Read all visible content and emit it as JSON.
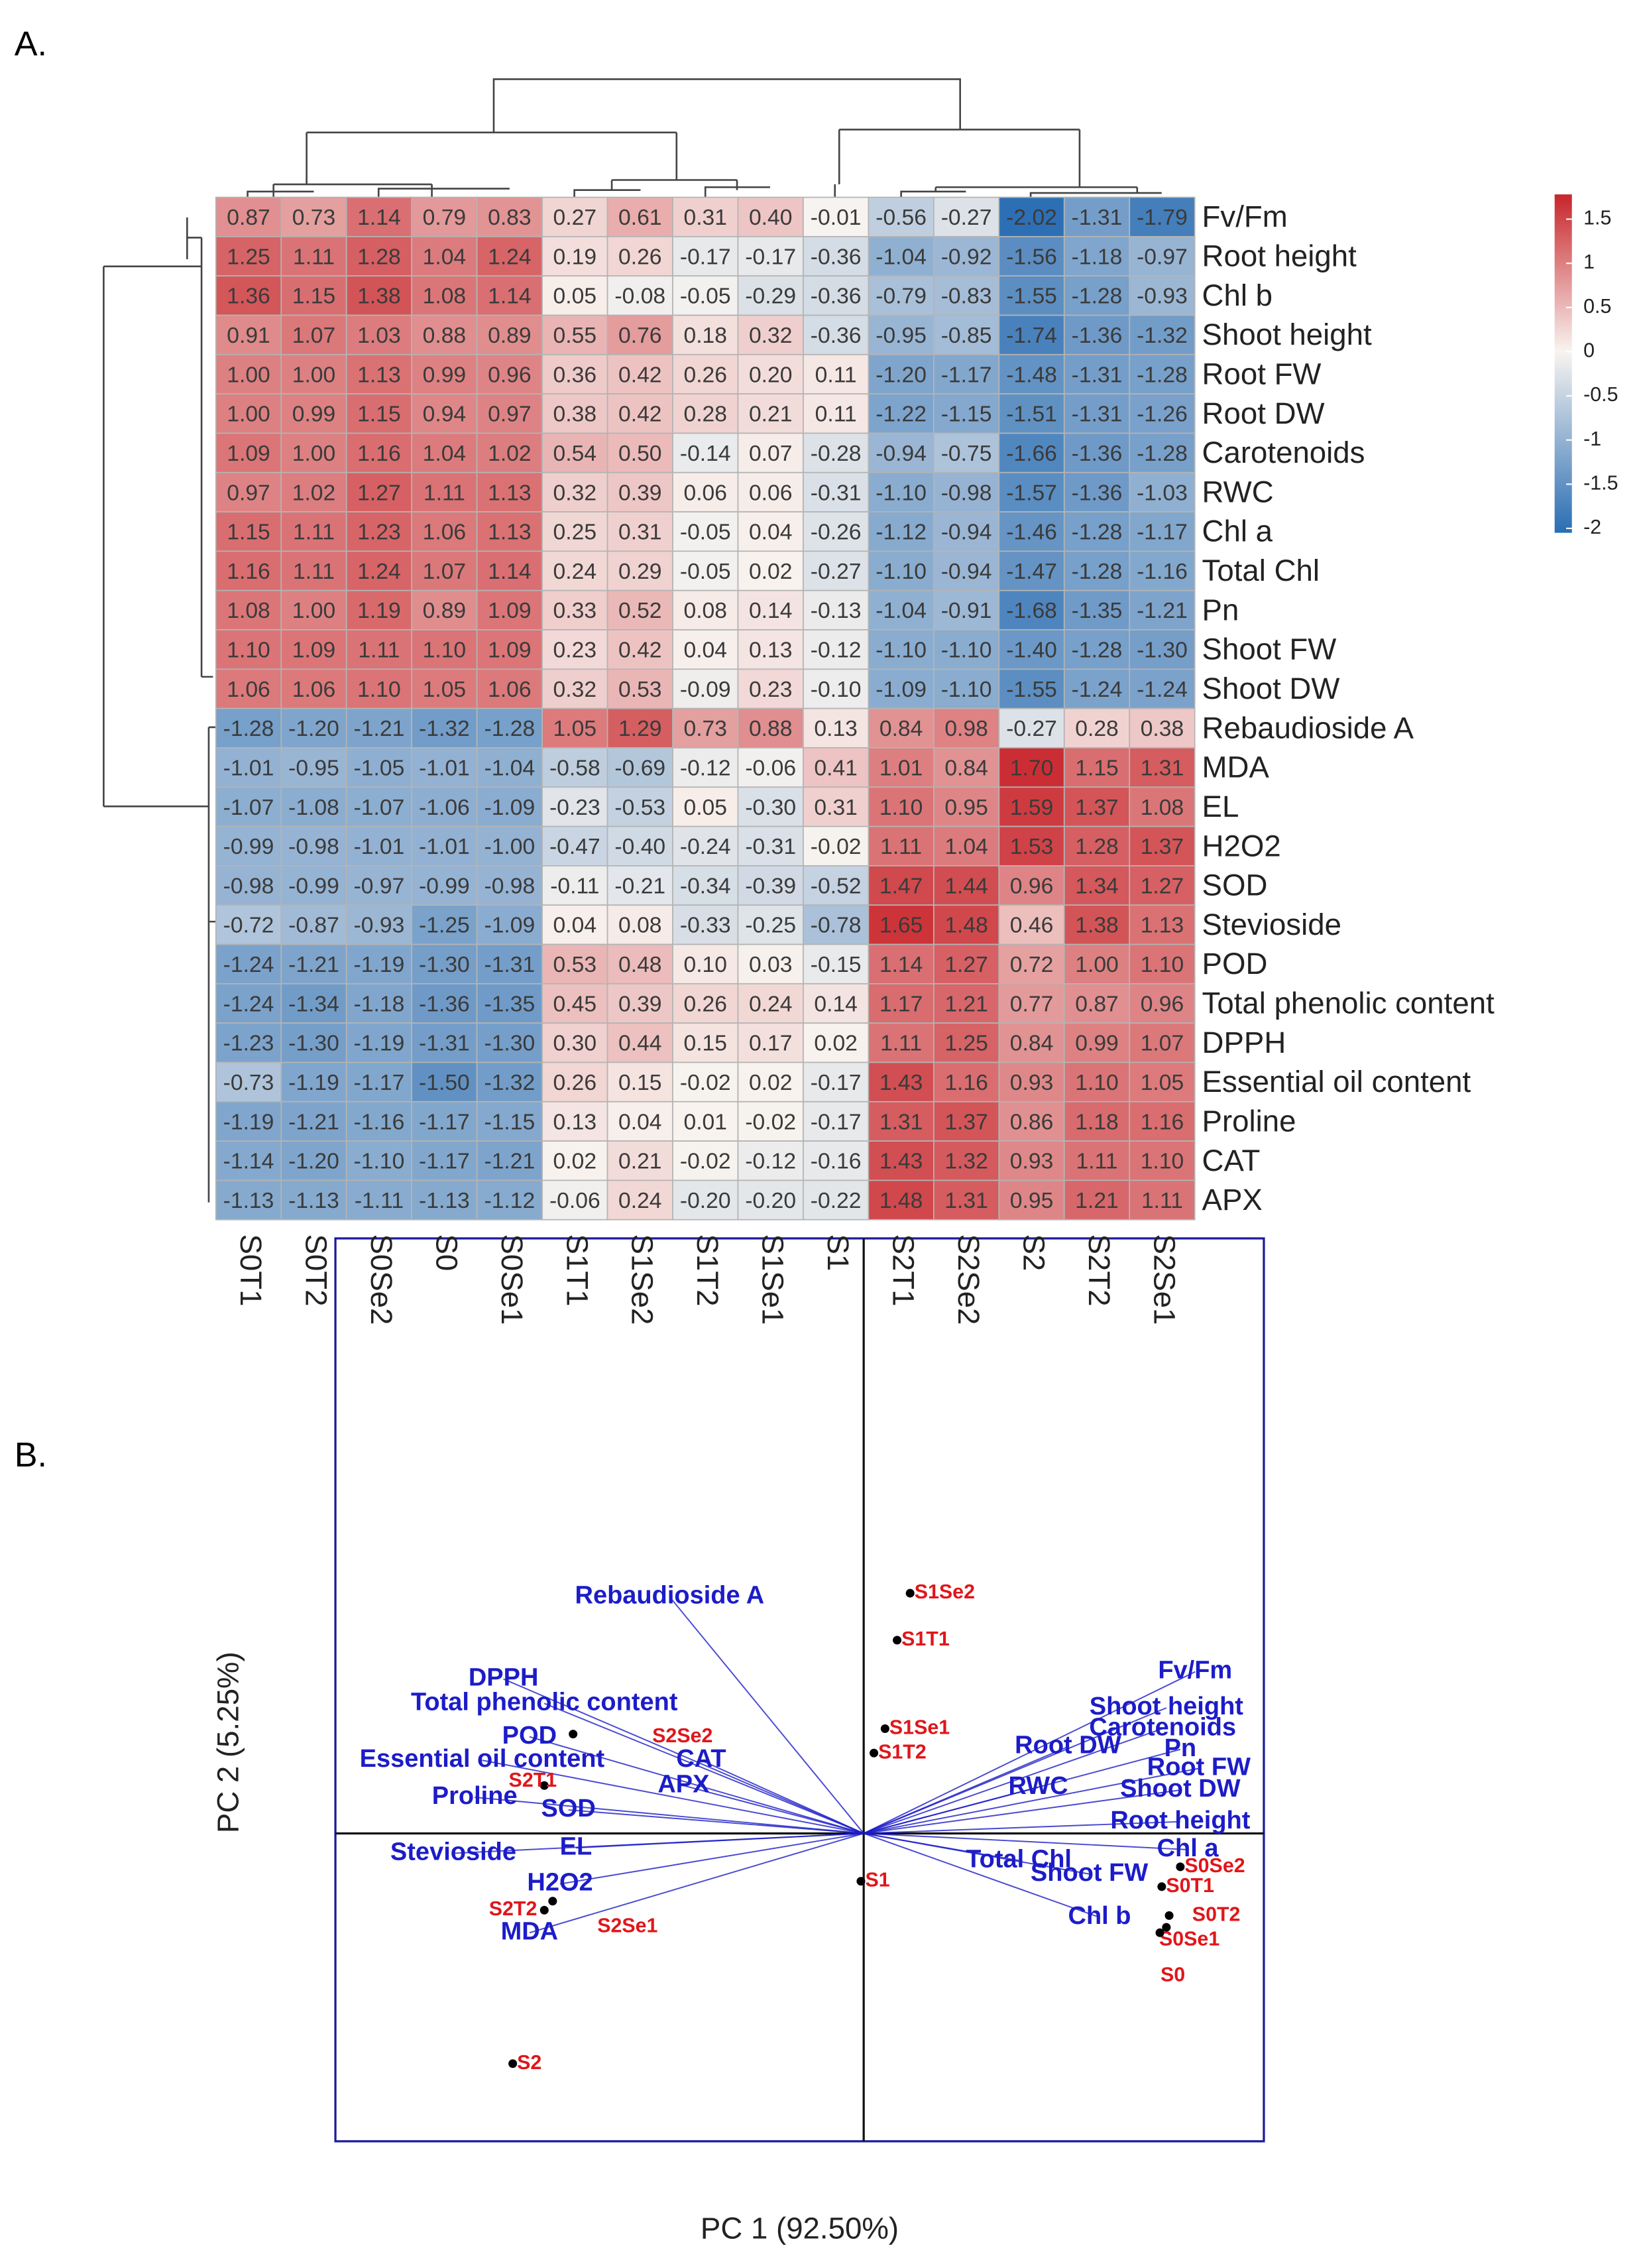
{
  "panel_labels": [
    "A.",
    "B."
  ],
  "chart_data": [
    {
      "type": "heatmap",
      "columns": [
        "S0T1",
        "S0T2",
        "S0Se2",
        "S0",
        "S0Se1",
        "S1T1",
        "S1Se2",
        "S1T2",
        "S1Se1",
        "S1",
        "S2T1",
        "S2Se2",
        "S2",
        "S2T2",
        "S2Se1"
      ],
      "rows": [
        "Fv/Fm",
        "Root height",
        "Chl b",
        "Shoot height",
        "Root FW",
        "Root DW",
        "Carotenoids",
        "RWC",
        "Chl a",
        "Total Chl",
        "Pn",
        "Shoot FW",
        "Shoot DW",
        "Rebaudioside A",
        "MDA",
        "EL",
        "H2O2",
        "SOD",
        "Stevioside",
        "POD",
        "Total phenolic content",
        "DPPH",
        "Essential oil content",
        "Proline",
        "CAT",
        "APX"
      ],
      "values": [
        [
          0.87,
          0.73,
          1.14,
          0.79,
          0.83,
          0.27,
          0.61,
          0.31,
          0.4,
          -0.01,
          -0.56,
          -0.27,
          -2.02,
          -1.31,
          -1.79
        ],
        [
          1.25,
          1.11,
          1.28,
          1.04,
          1.24,
          0.19,
          0.26,
          -0.17,
          -0.17,
          -0.36,
          -1.04,
          -0.92,
          -1.56,
          -1.18,
          -0.97
        ],
        [
          1.36,
          1.15,
          1.38,
          1.08,
          1.14,
          0.05,
          -0.08,
          -0.05,
          -0.29,
          -0.36,
          -0.79,
          -0.83,
          -1.55,
          -1.28,
          -0.93
        ],
        [
          0.91,
          1.07,
          1.03,
          0.88,
          0.89,
          0.55,
          0.76,
          0.18,
          0.32,
          -0.36,
          -0.95,
          -0.85,
          -1.74,
          -1.36,
          -1.32
        ],
        [
          1.0,
          1.0,
          1.13,
          0.99,
          0.96,
          0.36,
          0.42,
          0.26,
          0.2,
          0.11,
          -1.2,
          -1.17,
          -1.48,
          -1.31,
          -1.28
        ],
        [
          1.0,
          0.99,
          1.15,
          0.94,
          0.97,
          0.38,
          0.42,
          0.28,
          0.21,
          0.11,
          -1.22,
          -1.15,
          -1.51,
          -1.31,
          -1.26
        ],
        [
          1.09,
          1.0,
          1.16,
          1.04,
          1.02,
          0.54,
          0.5,
          -0.14,
          0.07,
          -0.28,
          -0.94,
          -0.75,
          -1.66,
          -1.36,
          -1.28
        ],
        [
          0.97,
          1.02,
          1.27,
          1.11,
          1.13,
          0.32,
          0.39,
          0.06,
          0.06,
          -0.31,
          -1.1,
          -0.98,
          -1.57,
          -1.36,
          -1.03
        ],
        [
          1.15,
          1.11,
          1.23,
          1.06,
          1.13,
          0.25,
          0.31,
          -0.05,
          0.04,
          -0.26,
          -1.12,
          -0.94,
          -1.46,
          -1.28,
          -1.17
        ],
        [
          1.16,
          1.11,
          1.24,
          1.07,
          1.14,
          0.24,
          0.29,
          -0.05,
          0.02,
          -0.27,
          -1.1,
          -0.94,
          -1.47,
          -1.28,
          -1.16
        ],
        [
          1.08,
          1.0,
          1.19,
          0.89,
          1.09,
          0.33,
          0.52,
          0.08,
          0.14,
          -0.13,
          -1.04,
          -0.91,
          -1.68,
          -1.35,
          -1.21
        ],
        [
          1.1,
          1.09,
          1.11,
          1.1,
          1.09,
          0.23,
          0.42,
          0.04,
          0.13,
          -0.12,
          -1.1,
          -1.1,
          -1.4,
          -1.28,
          -1.3
        ],
        [
          1.06,
          1.06,
          1.1,
          1.05,
          1.06,
          0.32,
          0.53,
          -0.09,
          0.23,
          -0.1,
          -1.09,
          -1.1,
          -1.55,
          -1.24,
          -1.24
        ],
        [
          -1.28,
          -1.2,
          -1.21,
          -1.32,
          -1.28,
          1.05,
          1.29,
          0.73,
          0.88,
          0.13,
          0.84,
          0.98,
          -0.27,
          0.28,
          0.38
        ],
        [
          -1.01,
          -0.95,
          -1.05,
          -1.01,
          -1.04,
          -0.58,
          -0.69,
          -0.12,
          -0.06,
          0.41,
          1.01,
          0.84,
          1.7,
          1.15,
          1.31
        ],
        [
          -1.07,
          -1.08,
          -1.07,
          -1.06,
          -1.09,
          -0.23,
          -0.53,
          0.05,
          -0.3,
          0.31,
          1.1,
          0.95,
          1.59,
          1.37,
          1.08
        ],
        [
          -0.99,
          -0.98,
          -1.01,
          -1.01,
          -1.0,
          -0.47,
          -0.4,
          -0.24,
          -0.31,
          -0.02,
          1.11,
          1.04,
          1.53,
          1.28,
          1.37
        ],
        [
          -0.98,
          -0.99,
          -0.97,
          -0.99,
          -0.98,
          -0.11,
          -0.21,
          -0.34,
          -0.39,
          -0.52,
          1.47,
          1.44,
          0.96,
          1.34,
          1.27
        ],
        [
          -0.72,
          -0.87,
          -0.93,
          -1.25,
          -1.09,
          0.04,
          0.08,
          -0.33,
          -0.25,
          -0.78,
          1.65,
          1.48,
          0.46,
          1.38,
          1.13
        ],
        [
          -1.24,
          -1.21,
          -1.19,
          -1.3,
          -1.31,
          0.53,
          0.48,
          0.1,
          0.03,
          -0.15,
          1.14,
          1.27,
          0.72,
          1.0,
          1.1
        ],
        [
          -1.24,
          -1.34,
          -1.18,
          -1.36,
          -1.35,
          0.45,
          0.39,
          0.26,
          0.24,
          0.14,
          1.17,
          1.21,
          0.77,
          0.87,
          0.96
        ],
        [
          -1.23,
          -1.3,
          -1.19,
          -1.31,
          -1.3,
          0.3,
          0.44,
          0.15,
          0.17,
          0.02,
          1.11,
          1.25,
          0.84,
          0.99,
          1.07
        ],
        [
          -0.73,
          -1.19,
          -1.17,
          -1.5,
          -1.32,
          0.26,
          0.15,
          -0.02,
          0.02,
          -0.17,
          1.43,
          1.16,
          0.93,
          1.1,
          1.05
        ],
        [
          -1.19,
          -1.21,
          -1.16,
          -1.17,
          -1.15,
          0.13,
          0.04,
          0.01,
          -0.02,
          -0.17,
          1.31,
          1.37,
          0.86,
          1.18,
          1.16
        ],
        [
          -1.14,
          -1.2,
          -1.1,
          -1.17,
          -1.21,
          0.02,
          0.21,
          -0.02,
          -0.12,
          -0.16,
          1.43,
          1.32,
          0.93,
          1.11,
          1.1
        ],
        [
          -1.13,
          -1.13,
          -1.11,
          -1.13,
          -1.12,
          -0.06,
          0.24,
          -0.2,
          -0.2,
          -0.22,
          1.48,
          1.31,
          0.95,
          1.21,
          1.11
        ]
      ],
      "value_labels": [
        [
          "0.87",
          "0.73",
          "1.14",
          "0.79",
          "0.83",
          "0.27",
          "0.61",
          "0.31",
          "0.40",
          "-0.01",
          "-0.56",
          "-0.27",
          "-2.02",
          "-1.31",
          "-1.79"
        ],
        [
          "1.25",
          "1.11",
          "1.28",
          "1.04",
          "1.24",
          "0.19",
          "0.26",
          "-0.17",
          "-0.17",
          "-0.36",
          "-1.04",
          "-0.92",
          "-1.56",
          "-1.18",
          "-0.97"
        ],
        [
          "1.36",
          "1.15",
          "1.38",
          "1.08",
          "1.14",
          "0.05",
          "-0.08",
          "-0.05",
          "-0.29",
          "-0.36",
          "-0.79",
          "-0.83",
          "-1.55",
          "-1.28",
          "-0.93"
        ],
        [
          "0.91",
          "1.07",
          "1.03",
          "0.88",
          "0.89",
          "0.55",
          "0.76",
          "0.18",
          "0.32",
          "-0.36",
          "-0.95",
          "-0.85",
          "-1.74",
          "-1.36",
          "-1.32"
        ],
        [
          "1.00",
          "1.00",
          "1.13",
          "0.99",
          "0.96",
          "0.36",
          "0.42",
          "0.26",
          "0.20",
          "0.11",
          "-1.20",
          "-1.17",
          "-1.48",
          "-1.31",
          "-1.28"
        ],
        [
          "1.00",
          "0.99",
          "1.15",
          "0.94",
          "0.97",
          "0.38",
          "0.42",
          "0.28",
          "0.21",
          "0.11",
          "-1.22",
          "-1.15",
          "-1.51",
          "-1.31",
          "-1.26"
        ],
        [
          "1.09",
          "1.00",
          "1.16",
          "1.04",
          "1.02",
          "0.54",
          "0.50",
          "-0.14",
          "0.07",
          "-0.28",
          "-0.94",
          "-0.75",
          "-1.66",
          "-1.36",
          "-1.28"
        ],
        [
          "0.97",
          "1.02",
          "1.27",
          "1.11",
          "1.13",
          "0.32",
          "0.39",
          "0.06",
          "0.06",
          "-0.31",
          "-1.10",
          "-0.98",
          "-1.57",
          "-1.36",
          "-1.03"
        ],
        [
          "1.15",
          "1.11",
          "1.23",
          "1.06",
          "1.13",
          "0.25",
          "0.31",
          "-0.05",
          "0.04",
          "-0.26",
          "-1.12",
          "-0.94",
          "-1.46",
          "-1.28",
          "-1.17"
        ],
        [
          "1.16",
          "1.11",
          "1.24",
          "1.07",
          "1.14",
          "0.24",
          "0.29",
          "-0.05",
          "0.02",
          "-0.27",
          "-1.10",
          "-0.94",
          "-1.47",
          "-1.28",
          "-1.16"
        ],
        [
          "1.08",
          "1.00",
          "1.19",
          "0.89",
          "1.09",
          "0.33",
          "0.52",
          "0.08",
          "0.14",
          "-0.13",
          "-1.04",
          "-0.91",
          "-1.68",
          "-1.35",
          "-1.21"
        ],
        [
          "1.10",
          "1.09",
          "1.11",
          "1.10",
          "1.09",
          "0.23",
          "0.42",
          "0.04",
          "0.13",
          "-0.12",
          "-1.10",
          "-1.10",
          "-1.40",
          "-1.28",
          "-1.30"
        ],
        [
          "1.06",
          "1.06",
          "1.10",
          "1.05",
          "1.06",
          "0.32",
          "0.53",
          "-0.09",
          "0.23",
          "-0.10",
          "-1.09",
          "-1.10",
          "-1.55",
          "-1.24",
          "-1.24"
        ],
        [
          "-1.28",
          "-1.20",
          "-1.21",
          "-1.32",
          "-1.28",
          "1.05",
          "1.29",
          "0.73",
          "0.88",
          "0.13",
          "0.84",
          "0.98",
          "-0.27",
          "0.28",
          "0.38"
        ],
        [
          "-1.01",
          "-0.95",
          "-1.05",
          "-1.01",
          "-1.04",
          "-0.58",
          "-0.69",
          "-0.12",
          "-0.06",
          "0.41",
          "1.01",
          "0.84",
          "1.70",
          "1.15",
          "1.31"
        ],
        [
          "-1.07",
          "-1.08",
          "-1.07",
          "-1.06",
          "-1.09",
          "-0.23",
          "-0.53",
          "0.05",
          "-0.30",
          "0.31",
          "1.10",
          "0.95",
          "1.59",
          "1.37",
          "1.08"
        ],
        [
          "-0.99",
          "-0.98",
          "-1.01",
          "-1.01",
          "-1.00",
          "-0.47",
          "-0.40",
          "-0.24",
          "-0.31",
          "-0.02",
          "1.11",
          "1.04",
          "1.53",
          "1.28",
          "1.37"
        ],
        [
          "-0.98",
          "-0.99",
          "-0.97",
          "-0.99",
          "-0.98",
          "-0.11",
          "-0.21",
          "-0.34",
          "-0.39",
          "-0.52",
          "1.47",
          "1.44",
          "0.96",
          "1.34",
          "1.27"
        ],
        [
          "-0.72",
          "-0.87",
          "-0.93",
          "-1.25",
          "-1.09",
          "0.04",
          "0.08",
          "-0.33",
          "-0.25",
          "-0.78",
          "1.65",
          "1.48",
          "0.46",
          "1.38",
          "1.13"
        ],
        [
          "-1.24",
          "-1.21",
          "-1.19",
          "-1.30",
          "-1.31",
          "0.53",
          "0.48",
          "0.10",
          "0.03",
          "-0.15",
          "1.14",
          "1.27",
          "0.72",
          "1.00",
          "1.10"
        ],
        [
          "-1.24",
          "-1.34",
          "-1.18",
          "-1.36",
          "-1.35",
          "0.45",
          "0.39",
          "0.26",
          "0.24",
          "0.14",
          "1.17",
          "1.21",
          "0.77",
          "0.87",
          "0.96"
        ],
        [
          "-1.23",
          "-1.30",
          "-1.19",
          "-1.31",
          "-1.30",
          "0.30",
          "0.44",
          "0.15",
          "0.17",
          "0.02",
          "1.11",
          "1.25",
          "0.84",
          "0.99",
          "1.07"
        ],
        [
          "-0.73",
          "-1.19",
          "-1.17",
          "-1.50",
          "-1.32",
          "0.26",
          "0.15",
          "-0.02",
          "0.02",
          "-0.17",
          "1.43",
          "1.16",
          "0.93",
          "1.10",
          "1.05"
        ],
        [
          "-1.19",
          "-1.21",
          "-1.16",
          "-1.17",
          "-1.15",
          "0.13",
          "0.04",
          "0.01",
          "-0.02",
          "-0.17",
          "1.31",
          "1.37",
          "0.86",
          "1.18",
          "1.16"
        ],
        [
          "-1.14",
          "-1.20",
          "-1.10",
          "-1.17",
          "-1.21",
          "0.02",
          "0.21",
          "-0.02",
          "-0.12",
          "-0.16",
          "1.43",
          "1.32",
          "0.93",
          "1.11",
          "1.10"
        ],
        [
          "-1.13",
          "-1.13",
          "-1.11",
          "-1.13",
          "-1.12",
          "-0.06",
          "0.24",
          "-0.20",
          "-0.20",
          "-0.22",
          "1.48",
          "1.31",
          "0.95",
          "1.21",
          "1.11"
        ]
      ],
      "colorbar": {
        "lim": [
          -2.05,
          1.78
        ],
        "center": 0,
        "ticks": [
          1.5,
          1,
          0.5,
          0,
          -0.5,
          -1,
          -1.5,
          -2
        ],
        "colors": [
          "#2a6db3",
          "#f8f4f0",
          "#c8252b"
        ]
      }
    },
    {
      "type": "biplot",
      "xlabel": "PC 1 (92.50%)",
      "ylabel": "PC 2 (5.25%)",
      "xlim": [
        -5.69,
        4.31
      ],
      "ylim": [
        -3.41,
        6.59
      ],
      "xline": 0,
      "yline": 0,
      "points": {
        "color": "#e0161a",
        "labels": [
          "S1Se2",
          "S1T1",
          "S1Se1",
          "S1T2",
          "S1",
          "S2Se2",
          "S2T1",
          "S2T2",
          "S2Se1",
          "S2",
          "S0Se2",
          "S0T1",
          "S0T2",
          "S0Se1",
          "S0"
        ],
        "x": [
          0.5,
          0.36,
          0.23,
          0.11,
          -0.03,
          -3.13,
          -3.44,
          -3.44,
          -3.35,
          -3.78,
          3.41,
          3.21,
          3.29,
          3.26,
          3.19
        ],
        "y": [
          2.66,
          2.14,
          1.16,
          0.89,
          -0.53,
          1.1,
          0.53,
          -0.85,
          -0.75,
          -2.55,
          -0.37,
          -0.59,
          -0.91,
          -1.04,
          -1.1
        ]
      },
      "loadings": {
        "color": "#1c1cc8",
        "labels": [
          "Rebaudioside A",
          "DPPH",
          "Total phenolic content",
          "POD",
          "Essential oil content",
          "CAT",
          "APX",
          "Proline",
          "SOD",
          "Stevioside",
          "EL",
          "H2O2",
          "MDA",
          "Fv/Fm",
          "Shoot height",
          "Carotenoids",
          "Root DW",
          "Pn",
          "Root FW",
          "RWC",
          "Shoot DW",
          "Root height",
          "Chl a",
          "Total Chl",
          "Shoot FW",
          "Chl b"
        ],
        "x": [
          -2.09,
          -3.88,
          -3.44,
          -3.6,
          -4.11,
          -1.75,
          -1.94,
          -4.19,
          -3.18,
          -4.42,
          -3.1,
          -3.27,
          -3.6,
          3.57,
          3.26,
          3.22,
          2.2,
          3.41,
          3.61,
          1.88,
          3.41,
          3.41,
          3.49,
          1.67,
          2.43,
          2.54
        ],
        "y": [
          2.62,
          1.71,
          1.44,
          1.07,
          0.81,
          0.81,
          0.53,
          0.4,
          0.26,
          -0.22,
          -0.16,
          -0.56,
          -1.1,
          1.79,
          1.39,
          1.16,
          0.96,
          0.93,
          0.72,
          0.51,
          0.48,
          0.13,
          -0.18,
          -0.3,
          -0.45,
          -0.93
        ]
      }
    }
  ]
}
